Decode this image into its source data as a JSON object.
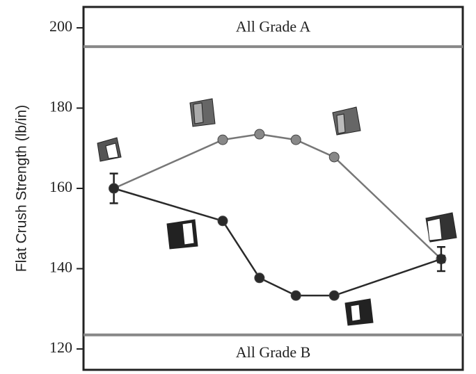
{
  "chart_data": {
    "type": "line",
    "y_label": "Flat Crush Strength (lb/in)",
    "x": [
      8,
      36.7,
      46.4,
      56,
      66.1,
      94.3
    ],
    "xlim": [
      0,
      100
    ],
    "ylim": [
      114.8,
      205.2
    ],
    "yticks": [
      120,
      140,
      160,
      180,
      200
    ],
    "bands": [
      {
        "value": 195.3,
        "label": "All Grade A"
      },
      {
        "value": 123.5,
        "label": "All Grade B"
      }
    ],
    "series": [
      {
        "color": "#777777",
        "values": [
          160,
          172.1,
          173.5,
          172.1,
          167.8,
          142.4
        ]
      },
      {
        "color": "#2a2a2a",
        "values": [
          160,
          151.9,
          137.7,
          133.3,
          133.3,
          142.4
        ],
        "errors": [
          3.7,
          null,
          null,
          null,
          null,
          3
        ]
      }
    ]
  }
}
